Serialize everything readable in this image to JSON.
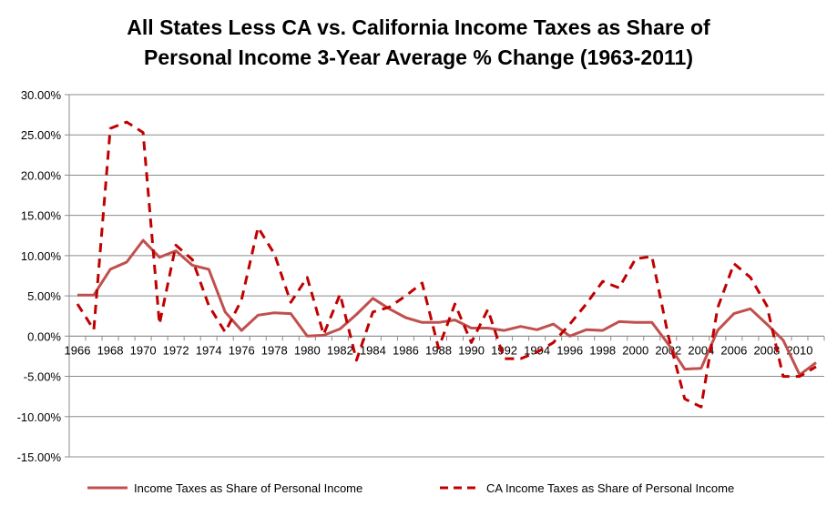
{
  "chart_data": {
    "type": "line",
    "title_line1": "All States Less CA  vs. California Income Taxes as Share of",
    "title_line2": "Personal Income 3-Year Average % Change (1963-2011)",
    "xlabel": "",
    "ylabel": "",
    "ylim": [
      -15,
      30
    ],
    "yticks": [
      "30.00%",
      "25.00%",
      "20.00%",
      "15.00%",
      "10.00%",
      "5.00%",
      "0.00%",
      "-5.00%",
      "-10.00%",
      "-15.00%"
    ],
    "ytick_values": [
      30,
      25,
      20,
      15,
      10,
      5,
      0,
      -5,
      -10,
      -15
    ],
    "grid": true,
    "legend_position": "bottom",
    "x": [
      1966,
      1967,
      1968,
      1969,
      1970,
      1971,
      1972,
      1973,
      1974,
      1975,
      1976,
      1977,
      1978,
      1979,
      1980,
      1981,
      1982,
      1983,
      1984,
      1985,
      1986,
      1987,
      1988,
      1989,
      1990,
      1991,
      1992,
      1993,
      1994,
      1995,
      1996,
      1997,
      1998,
      1999,
      2000,
      2001,
      2002,
      2003,
      2004,
      2005,
      2006,
      2007,
      2008,
      2009,
      2010,
      2011
    ],
    "xtick_labels": [
      "1966",
      "1968",
      "1970",
      "1972",
      "1974",
      "1976",
      "1978",
      "1980",
      "1982",
      "1984",
      "1986",
      "1988",
      "1990",
      "1992",
      "1994",
      "1996",
      "1998",
      "2000",
      "2002",
      "2004",
      "2006",
      "2008",
      "2010"
    ],
    "series": [
      {
        "name": "Income Taxes as Share of Personal Income",
        "color": "#c0504d",
        "style": "solid",
        "values": [
          5.1,
          5.1,
          8.3,
          9.2,
          11.9,
          9.8,
          10.6,
          8.8,
          8.3,
          3.0,
          0.7,
          2.6,
          2.9,
          2.8,
          0.0,
          0.1,
          0.9,
          2.7,
          4.7,
          3.4,
          2.3,
          1.7,
          1.7,
          2.0,
          1.0,
          1.0,
          0.7,
          1.2,
          0.8,
          1.5,
          0.0,
          0.8,
          0.7,
          1.8,
          1.7,
          1.7,
          -1.0,
          -4.1,
          -4.0,
          0.7,
          2.8,
          3.4,
          1.5,
          -0.5,
          -4.8,
          -3.3
        ]
      },
      {
        "name": "CA Income Taxes as Share of Personal Income",
        "color": "#c00000",
        "style": "dashed",
        "values": [
          4.0,
          0.8,
          25.8,
          26.6,
          25.3,
          1.5,
          11.3,
          9.5,
          3.8,
          0.5,
          4.5,
          13.5,
          10.2,
          4.2,
          7.3,
          0.2,
          5.2,
          -3.0,
          3.0,
          3.6,
          5.0,
          6.6,
          -1.5,
          4.0,
          -0.8,
          3.3,
          -2.8,
          -2.8,
          -2.0,
          -0.8,
          1.5,
          4.0,
          6.8,
          6.0,
          9.6,
          9.9,
          0.0,
          -7.8,
          -8.8,
          3.5,
          9.0,
          7.3,
          3.8,
          -5.0,
          -5.0,
          -3.8
        ]
      }
    ]
  }
}
